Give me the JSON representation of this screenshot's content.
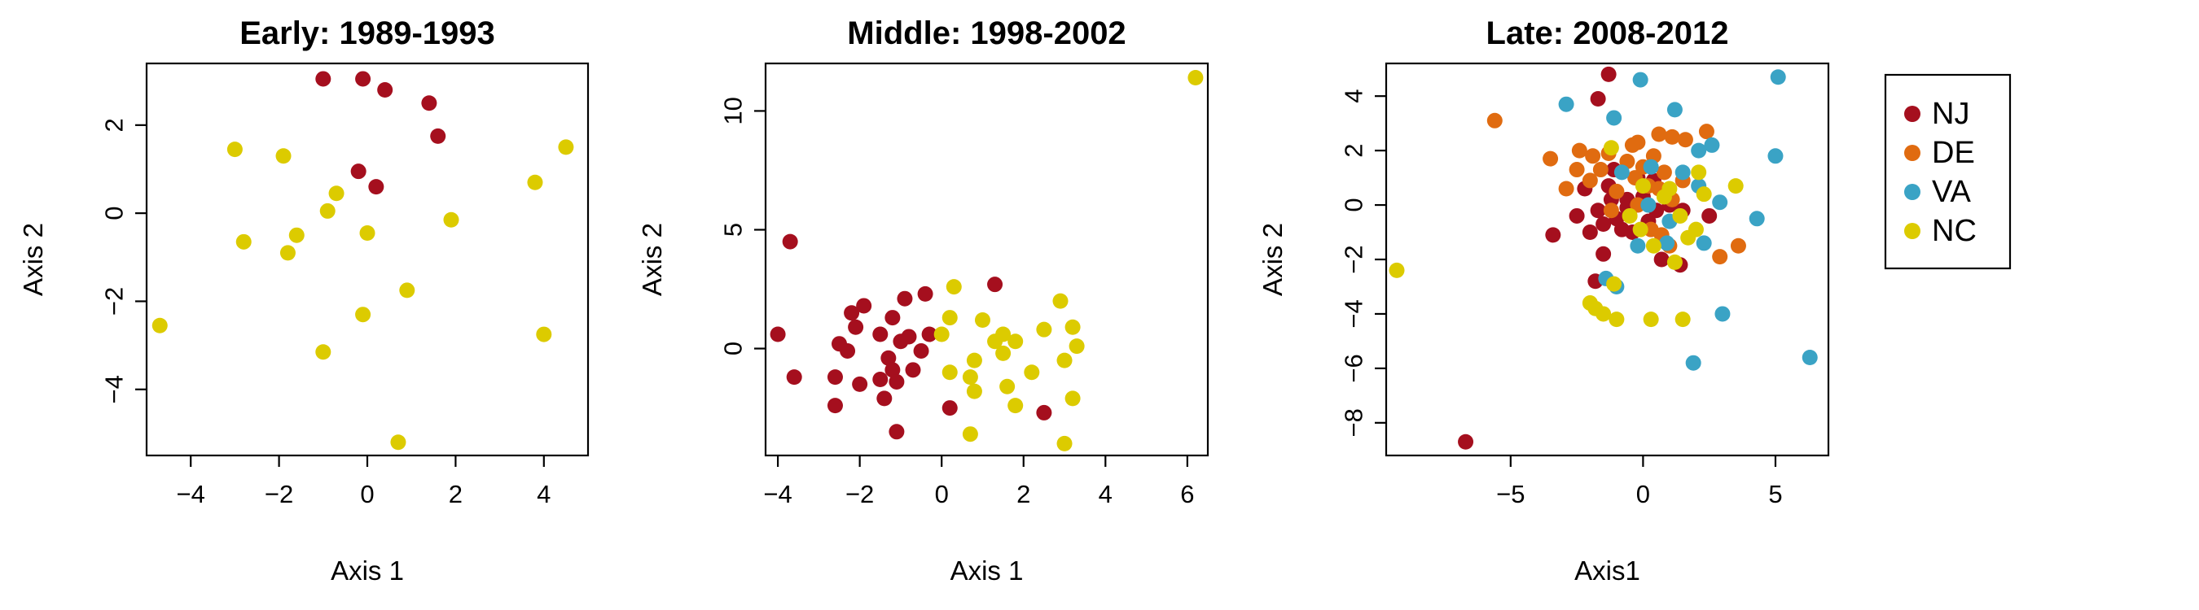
{
  "colors": {
    "NJ": "#a50f1e",
    "DE": "#e06b10",
    "VA": "#3aa3c5",
    "NC": "#dccb00"
  },
  "legend": {
    "placement": "right",
    "entries": [
      {
        "label": "NJ",
        "key": "NJ"
      },
      {
        "label": "DE",
        "key": "DE"
      },
      {
        "label": "VA",
        "key": "VA"
      },
      {
        "label": "NC",
        "key": "NC"
      }
    ]
  },
  "chart_data": [
    {
      "type": "scatter",
      "title": "Early: 1989-1993",
      "xlabel": "Axis 1",
      "ylabel": "Axis 2",
      "xlim": [
        -5,
        5
      ],
      "ylim": [
        -5.5,
        3.4
      ],
      "xticks": [
        -4,
        -2,
        0,
        2,
        4
      ],
      "yticks": [
        -4,
        -2,
        0,
        2
      ],
      "series": [
        {
          "name": "NJ",
          "points": [
            [
              -1.0,
              3.05
            ],
            [
              -0.1,
              3.05
            ],
            [
              0.4,
              2.8
            ],
            [
              1.4,
              2.5
            ],
            [
              1.6,
              1.75
            ],
            [
              -0.2,
              0.95
            ],
            [
              0.2,
              0.6
            ]
          ]
        },
        {
          "name": "NC",
          "points": [
            [
              -3.0,
              1.45
            ],
            [
              -1.9,
              1.3
            ],
            [
              4.5,
              1.5
            ],
            [
              -0.7,
              0.45
            ],
            [
              -0.9,
              0.05
            ],
            [
              3.8,
              0.7
            ],
            [
              1.9,
              -0.15
            ],
            [
              0.0,
              -0.45
            ],
            [
              -2.8,
              -0.65
            ],
            [
              -1.6,
              -0.5
            ],
            [
              -1.8,
              -0.9
            ],
            [
              0.9,
              -1.75
            ],
            [
              -0.1,
              -2.3
            ],
            [
              -4.7,
              -2.55
            ],
            [
              4.0,
              -2.75
            ],
            [
              -1.0,
              -3.15
            ],
            [
              0.7,
              -5.2
            ]
          ]
        }
      ]
    },
    {
      "type": "scatter",
      "title": "Middle: 1998-2002",
      "xlabel": "Axis 1",
      "ylabel": "Axis 2",
      "xlim": [
        -4.3,
        6.5
      ],
      "ylim": [
        -4.5,
        12.0
      ],
      "xticks": [
        -4,
        -2,
        0,
        2,
        4,
        6
      ],
      "yticks": [
        0,
        5,
        10
      ],
      "series": [
        {
          "name": "NJ",
          "points": [
            [
              -3.7,
              4.5
            ],
            [
              -4.0,
              0.6
            ],
            [
              -3.6,
              -1.2
            ],
            [
              -2.6,
              -2.4
            ],
            [
              -2.2,
              1.5
            ],
            [
              -1.9,
              1.8
            ],
            [
              -2.5,
              0.2
            ],
            [
              -2.3,
              -0.1
            ],
            [
              -2.1,
              0.9
            ],
            [
              -2.0,
              -1.5
            ],
            [
              -1.5,
              -1.3
            ],
            [
              -1.4,
              -2.1
            ],
            [
              -1.3,
              -0.4
            ],
            [
              -1.2,
              -0.9
            ],
            [
              -1.1,
              -1.4
            ],
            [
              -1.0,
              0.3
            ],
            [
              -0.8,
              0.5
            ],
            [
              -0.9,
              2.1
            ],
            [
              -0.7,
              -0.9
            ],
            [
              -0.5,
              -0.1
            ],
            [
              -0.3,
              0.6
            ],
            [
              -0.4,
              2.3
            ],
            [
              -1.1,
              -3.5
            ],
            [
              -2.6,
              -1.2
            ],
            [
              -1.5,
              0.6
            ],
            [
              -1.2,
              1.3
            ],
            [
              0.2,
              -2.5
            ],
            [
              1.3,
              2.7
            ],
            [
              2.5,
              -2.7
            ]
          ]
        },
        {
          "name": "NC",
          "points": [
            [
              6.2,
              11.4
            ],
            [
              0.3,
              2.6
            ],
            [
              1.0,
              1.2
            ],
            [
              0.2,
              1.3
            ],
            [
              0.0,
              0.6
            ],
            [
              1.3,
              0.3
            ],
            [
              1.5,
              -0.2
            ],
            [
              1.5,
              0.6
            ],
            [
              1.8,
              0.3
            ],
            [
              2.5,
              0.8
            ],
            [
              2.9,
              2.0
            ],
            [
              3.2,
              0.9
            ],
            [
              3.3,
              0.1
            ],
            [
              3.0,
              -0.5
            ],
            [
              0.8,
              -0.5
            ],
            [
              0.7,
              -1.2
            ],
            [
              0.8,
              -1.8
            ],
            [
              0.2,
              -1.0
            ],
            [
              1.6,
              -1.6
            ],
            [
              1.8,
              -2.4
            ],
            [
              3.2,
              -2.1
            ],
            [
              3.0,
              -4.0
            ],
            [
              0.7,
              -3.6
            ],
            [
              2.2,
              -1.0
            ]
          ]
        }
      ]
    },
    {
      "type": "scatter",
      "title": "Late: 2008-2012",
      "xlabel": "Axis1",
      "ylabel": "Axis 2",
      "xlim": [
        -9.7,
        7.0
      ],
      "ylim": [
        -9.2,
        5.2
      ],
      "xticks": [
        -5,
        0,
        5
      ],
      "yticks": [
        -8,
        -6,
        -4,
        -2,
        0,
        2,
        4
      ],
      "series": [
        {
          "name": "NJ",
          "points": [
            [
              -1.3,
              4.8
            ],
            [
              -1.7,
              3.9
            ],
            [
              -2.2,
              0.6
            ],
            [
              -1.7,
              -0.2
            ],
            [
              -1.3,
              0.7
            ],
            [
              -1.1,
              1.3
            ],
            [
              -1.0,
              -0.5
            ],
            [
              -0.6,
              0.2
            ],
            [
              -0.4,
              -1.0
            ],
            [
              0.0,
              0.3
            ],
            [
              -0.2,
              1.0
            ],
            [
              0.4,
              0.9
            ],
            [
              -2.5,
              -0.4
            ],
            [
              -3.4,
              -1.1
            ],
            [
              -2.0,
              -1.0
            ],
            [
              -1.5,
              -1.8
            ],
            [
              -0.8,
              -0.9
            ],
            [
              -0.6,
              -0.1
            ],
            [
              0.2,
              -0.6
            ],
            [
              0.5,
              -0.2
            ],
            [
              0.7,
              -2.0
            ],
            [
              1.0,
              0.0
            ],
            [
              1.4,
              -2.2
            ],
            [
              1.5,
              -0.2
            ],
            [
              2.5,
              -0.4
            ],
            [
              -1.8,
              -2.8
            ],
            [
              -6.7,
              -8.7
            ],
            [
              -1.2,
              0.2
            ],
            [
              -1.5,
              -0.7
            ]
          ]
        },
        {
          "name": "DE",
          "points": [
            [
              -5.6,
              3.1
            ],
            [
              -2.4,
              2.0
            ],
            [
              -1.9,
              1.8
            ],
            [
              -1.3,
              1.9
            ],
            [
              -0.2,
              2.3
            ],
            [
              0.6,
              2.6
            ],
            [
              1.1,
              2.5
            ],
            [
              1.6,
              2.4
            ],
            [
              2.4,
              2.7
            ],
            [
              -3.5,
              1.7
            ],
            [
              -2.9,
              0.6
            ],
            [
              -2.5,
              1.3
            ],
            [
              -2.0,
              0.9
            ],
            [
              -1.0,
              0.5
            ],
            [
              -0.6,
              1.6
            ],
            [
              -0.3,
              1.0
            ],
            [
              0.2,
              0.7
            ],
            [
              0.4,
              1.8
            ],
            [
              0.8,
              1.2
            ],
            [
              1.5,
              0.9
            ],
            [
              1.1,
              0.2
            ],
            [
              -1.2,
              -0.2
            ],
            [
              -0.2,
              0.0
            ],
            [
              0.3,
              -0.9
            ],
            [
              0.7,
              -1.1
            ],
            [
              1.0,
              -1.5
            ],
            [
              2.9,
              -1.9
            ],
            [
              3.6,
              -1.5
            ],
            [
              -0.4,
              2.2
            ],
            [
              0.0,
              1.4
            ],
            [
              0.6,
              0.6
            ],
            [
              -1.6,
              1.3
            ]
          ]
        },
        {
          "name": "VA",
          "points": [
            [
              -0.1,
              4.6
            ],
            [
              5.1,
              4.7
            ],
            [
              -2.9,
              3.7
            ],
            [
              1.2,
              3.5
            ],
            [
              -1.1,
              3.2
            ],
            [
              2.6,
              2.2
            ],
            [
              2.1,
              2.0
            ],
            [
              5.0,
              1.8
            ],
            [
              0.3,
              1.4
            ],
            [
              1.5,
              1.2
            ],
            [
              2.1,
              0.7
            ],
            [
              -0.8,
              1.2
            ],
            [
              2.9,
              0.1
            ],
            [
              0.2,
              0.0
            ],
            [
              4.3,
              -0.5
            ],
            [
              1.0,
              -0.6
            ],
            [
              0.9,
              -1.4
            ],
            [
              -0.2,
              -1.5
            ],
            [
              2.3,
              -1.4
            ],
            [
              -1.4,
              -2.7
            ],
            [
              -1.0,
              -3.0
            ],
            [
              3.0,
              -4.0
            ],
            [
              1.9,
              -5.8
            ],
            [
              6.3,
              -5.6
            ]
          ]
        },
        {
          "name": "NC",
          "points": [
            [
              -9.3,
              -2.4
            ],
            [
              2.1,
              1.2
            ],
            [
              3.5,
              0.7
            ],
            [
              -1.2,
              2.1
            ],
            [
              0.0,
              0.7
            ],
            [
              0.8,
              0.3
            ],
            [
              1.4,
              -0.4
            ],
            [
              2.0,
              -0.9
            ],
            [
              -0.1,
              -0.9
            ],
            [
              0.4,
              -1.5
            ],
            [
              1.7,
              -1.2
            ],
            [
              1.2,
              -2.1
            ],
            [
              -1.1,
              -2.9
            ],
            [
              -1.5,
              -4.0
            ],
            [
              -1.8,
              -3.8
            ],
            [
              -2.0,
              -3.6
            ],
            [
              -1.0,
              -4.2
            ],
            [
              0.3,
              -4.2
            ],
            [
              1.5,
              -4.2
            ],
            [
              -0.5,
              -0.4
            ],
            [
              1.0,
              0.6
            ],
            [
              2.3,
              0.4
            ]
          ]
        }
      ]
    }
  ]
}
